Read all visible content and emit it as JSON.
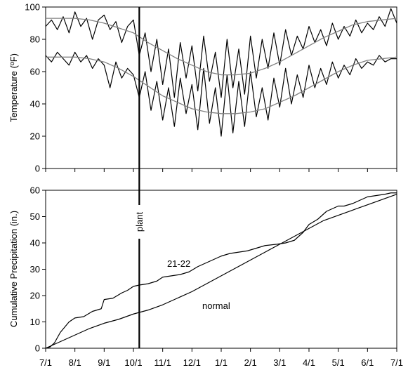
{
  "chart_data": [
    {
      "type": "line",
      "panel": "top",
      "ylabel": "Temperature (ºF)",
      "ylim": [
        0,
        100
      ],
      "yticks": [
        "0",
        "20",
        "40",
        "60",
        "80",
        "100"
      ],
      "x_unit": "months since 7/1",
      "xlim": [
        0,
        12
      ],
      "series": [
        {
          "kind": "observed daily maximum",
          "color": "#000000",
          "x": [
            0.0,
            0.2,
            0.4,
            0.6,
            0.8,
            1.0,
            1.2,
            1.4,
            1.6,
            1.8,
            2.0,
            2.2,
            2.4,
            2.6,
            2.8,
            3.0,
            3.2,
            3.4,
            3.6,
            3.8,
            4.0,
            4.2,
            4.4,
            4.6,
            4.8,
            5.0,
            5.2,
            5.4,
            5.6,
            5.8,
            6.0,
            6.2,
            6.4,
            6.6,
            6.8,
            7.0,
            7.2,
            7.4,
            7.6,
            7.8,
            8.0,
            8.2,
            8.4,
            8.6,
            8.8,
            9.0,
            9.2,
            9.4,
            9.6,
            9.8,
            10.0,
            10.2,
            10.4,
            10.6,
            10.8,
            11.0,
            11.2,
            11.4,
            11.6,
            11.8,
            12.0
          ],
          "values": [
            88,
            92,
            86,
            94,
            84,
            97,
            88,
            93,
            80,
            92,
            95,
            86,
            91,
            78,
            88,
            92,
            70,
            84,
            60,
            80,
            52,
            74,
            44,
            78,
            56,
            76,
            48,
            82,
            54,
            72,
            44,
            80,
            50,
            74,
            46,
            82,
            56,
            80,
            62,
            84,
            64,
            86,
            70,
            82,
            74,
            88,
            78,
            86,
            76,
            90,
            80,
            88,
            82,
            92,
            84,
            90,
            86,
            94,
            88,
            99,
            90
          ]
        },
        {
          "kind": "observed daily minimum",
          "color": "#000000",
          "x": [
            0.0,
            0.2,
            0.4,
            0.6,
            0.8,
            1.0,
            1.2,
            1.4,
            1.6,
            1.8,
            2.0,
            2.2,
            2.4,
            2.6,
            2.8,
            3.0,
            3.2,
            3.4,
            3.6,
            3.8,
            4.0,
            4.2,
            4.4,
            4.6,
            4.8,
            5.0,
            5.2,
            5.4,
            5.6,
            5.8,
            6.0,
            6.2,
            6.4,
            6.6,
            6.8,
            7.0,
            7.2,
            7.4,
            7.6,
            7.8,
            8.0,
            8.2,
            8.4,
            8.6,
            8.8,
            9.0,
            9.2,
            9.4,
            9.6,
            9.8,
            10.0,
            10.2,
            10.4,
            10.6,
            10.8,
            11.0,
            11.2,
            11.4,
            11.6,
            11.8,
            12.0
          ],
          "values": [
            70,
            66,
            72,
            68,
            64,
            72,
            66,
            70,
            62,
            68,
            64,
            50,
            66,
            56,
            62,
            58,
            44,
            60,
            36,
            54,
            30,
            50,
            26,
            56,
            34,
            52,
            24,
            62,
            28,
            50,
            20,
            58,
            22,
            54,
            26,
            60,
            32,
            50,
            30,
            56,
            38,
            62,
            40,
            58,
            44,
            64,
            50,
            62,
            52,
            66,
            56,
            64,
            58,
            68,
            62,
            66,
            64,
            70,
            66,
            68,
            68
          ]
        },
        {
          "kind": "normal maximum",
          "color": "#808080",
          "x": [
            0,
            0.5,
            1,
            1.5,
            2,
            2.5,
            3,
            3.5,
            4,
            4.5,
            5,
            5.5,
            6,
            6.5,
            7,
            7.5,
            8,
            8.5,
            9,
            9.5,
            10,
            10.5,
            11,
            11.5,
            12
          ],
          "values": [
            93,
            93,
            93,
            92,
            90,
            87,
            84,
            78,
            73,
            68,
            64,
            60,
            58,
            58,
            59,
            62,
            66,
            71,
            76,
            81,
            85,
            89,
            91,
            92,
            93
          ]
        },
        {
          "kind": "normal minimum",
          "color": "#808080",
          "x": [
            0,
            0.5,
            1,
            1.5,
            2,
            2.5,
            3,
            3.5,
            4,
            4.5,
            5,
            5.5,
            6,
            6.5,
            7,
            7.5,
            8,
            8.5,
            9,
            9.5,
            10,
            10.5,
            11,
            11.5,
            12
          ],
          "values": [
            69,
            69,
            69,
            68,
            66,
            62,
            57,
            51,
            45,
            41,
            37,
            35,
            34,
            34,
            35,
            37,
            41,
            45,
            50,
            55,
            60,
            64,
            67,
            68,
            69
          ]
        }
      ]
    },
    {
      "type": "line",
      "panel": "bottom",
      "ylabel": "Cumulative Precipitation (in.)",
      "ylim": [
        0,
        60
      ],
      "yticks": [
        "0",
        "10",
        "20",
        "30",
        "40",
        "50",
        "60"
      ],
      "x_unit": "months since 7/1",
      "xlim": [
        0,
        12
      ],
      "categories": [
        "7/1",
        "8/1",
        "9/1",
        "10/1",
        "11/1",
        "12/1",
        "1/1",
        "2/1",
        "3/1",
        "4/1",
        "5/1",
        "6/1",
        "7/1"
      ],
      "series": [
        {
          "name": "21-22",
          "color": "#000000",
          "x": [
            0,
            0.15,
            0.3,
            0.5,
            0.8,
            1.0,
            1.3,
            1.6,
            1.9,
            2.0,
            2.3,
            2.6,
            2.8,
            3.0,
            3.2,
            3.5,
            3.8,
            4.0,
            4.3,
            4.6,
            4.9,
            5.2,
            5.5,
            5.8,
            6.0,
            6.3,
            6.6,
            6.9,
            7.2,
            7.5,
            7.9,
            8.2,
            8.5,
            8.8,
            9.0,
            9.3,
            9.6,
            9.8,
            10.0,
            10.2,
            10.5,
            10.8,
            11.0,
            11.3,
            11.6,
            11.8,
            12.0
          ],
          "values": [
            0,
            0.5,
            2,
            6,
            10,
            11.5,
            12,
            14,
            15,
            18.5,
            19,
            21,
            22,
            23.5,
            24,
            24.5,
            25.5,
            27,
            27.5,
            28,
            29,
            31,
            32.5,
            34,
            35,
            36,
            36.5,
            37,
            38,
            39,
            39.5,
            40,
            41,
            44,
            47,
            49,
            52,
            53,
            54,
            54,
            55,
            56.5,
            57.5,
            58,
            58.5,
            59,
            59
          ]
        },
        {
          "name": "normal",
          "color": "#000000",
          "x": [
            0,
            0.5,
            1,
            1.5,
            2,
            2.5,
            3,
            3.5,
            4,
            4.5,
            5,
            5.5,
            6,
            6.5,
            7,
            7.5,
            8,
            8.5,
            9,
            9.5,
            10,
            10.5,
            11,
            11.5,
            12
          ],
          "values": [
            0,
            2.5,
            5,
            7.5,
            9.5,
            11,
            13,
            14.5,
            16.5,
            19,
            21.5,
            24.5,
            27.5,
            30.5,
            33.5,
            36.5,
            39.5,
            42.5,
            45.5,
            48.5,
            50.5,
            52.5,
            54.5,
            56.5,
            58.5
          ]
        }
      ]
    }
  ],
  "annotations": {
    "plant_label": "plant",
    "plant_x": 3.2,
    "series_label_2122": "21-22",
    "series_label_normal": "normal"
  }
}
